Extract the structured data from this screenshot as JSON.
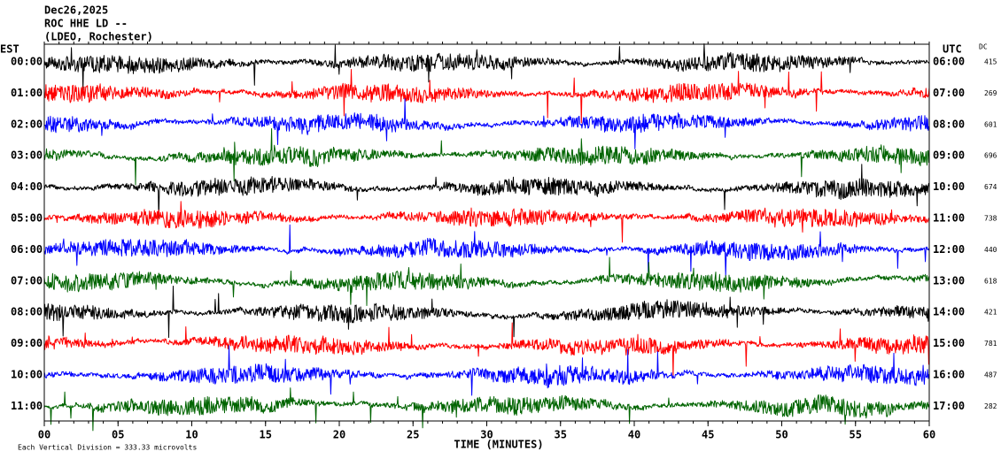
{
  "chart_data": {
    "type": "helicorder",
    "title": "Dec26,2025",
    "station": "ROC HHE LD --",
    "network": "(LDEO, Rochester)",
    "left_axis_label": "EST",
    "right_axis_label": "UTC",
    "dc_label": "DC",
    "x_label": "TIME (MINUTES)",
    "footnote": "Each Vertical Division =  333.33 microvolts",
    "xlim": [
      0,
      60
    ],
    "xticks": [
      {
        "value": 0,
        "label": "00"
      },
      {
        "value": 5,
        "label": "05"
      },
      10,
      15,
      20,
      25,
      30,
      35,
      40,
      45,
      50,
      55,
      60
    ],
    "rows": [
      {
        "est": "00:00",
        "utc": "06:00",
        "dc": 415,
        "color": "#000000"
      },
      {
        "est": "01:00",
        "utc": "07:00",
        "dc": 269,
        "color": "#ff0000"
      },
      {
        "est": "02:00",
        "utc": "08:00",
        "dc": 601,
        "color": "#0000ff"
      },
      {
        "est": "03:00",
        "utc": "09:00",
        "dc": 696,
        "color": "#006400"
      },
      {
        "est": "04:00",
        "utc": "10:00",
        "dc": 674,
        "color": "#000000"
      },
      {
        "est": "05:00",
        "utc": "11:00",
        "dc": 738,
        "color": "#ff0000"
      },
      {
        "est": "06:00",
        "utc": "12:00",
        "dc": 440,
        "color": "#0000ff"
      },
      {
        "est": "07:00",
        "utc": "13:00",
        "dc": 618,
        "color": "#006400"
      },
      {
        "est": "08:00",
        "utc": "14:00",
        "dc": 421,
        "color": "#000000"
      },
      {
        "est": "09:00",
        "utc": "15:00",
        "dc": 781,
        "color": "#ff0000"
      },
      {
        "est": "10:00",
        "utc": "16:00",
        "dc": 487,
        "color": "#0000ff"
      },
      {
        "est": "11:00",
        "utc": "17:00",
        "dc": 282,
        "color": "#006400"
      }
    ]
  }
}
